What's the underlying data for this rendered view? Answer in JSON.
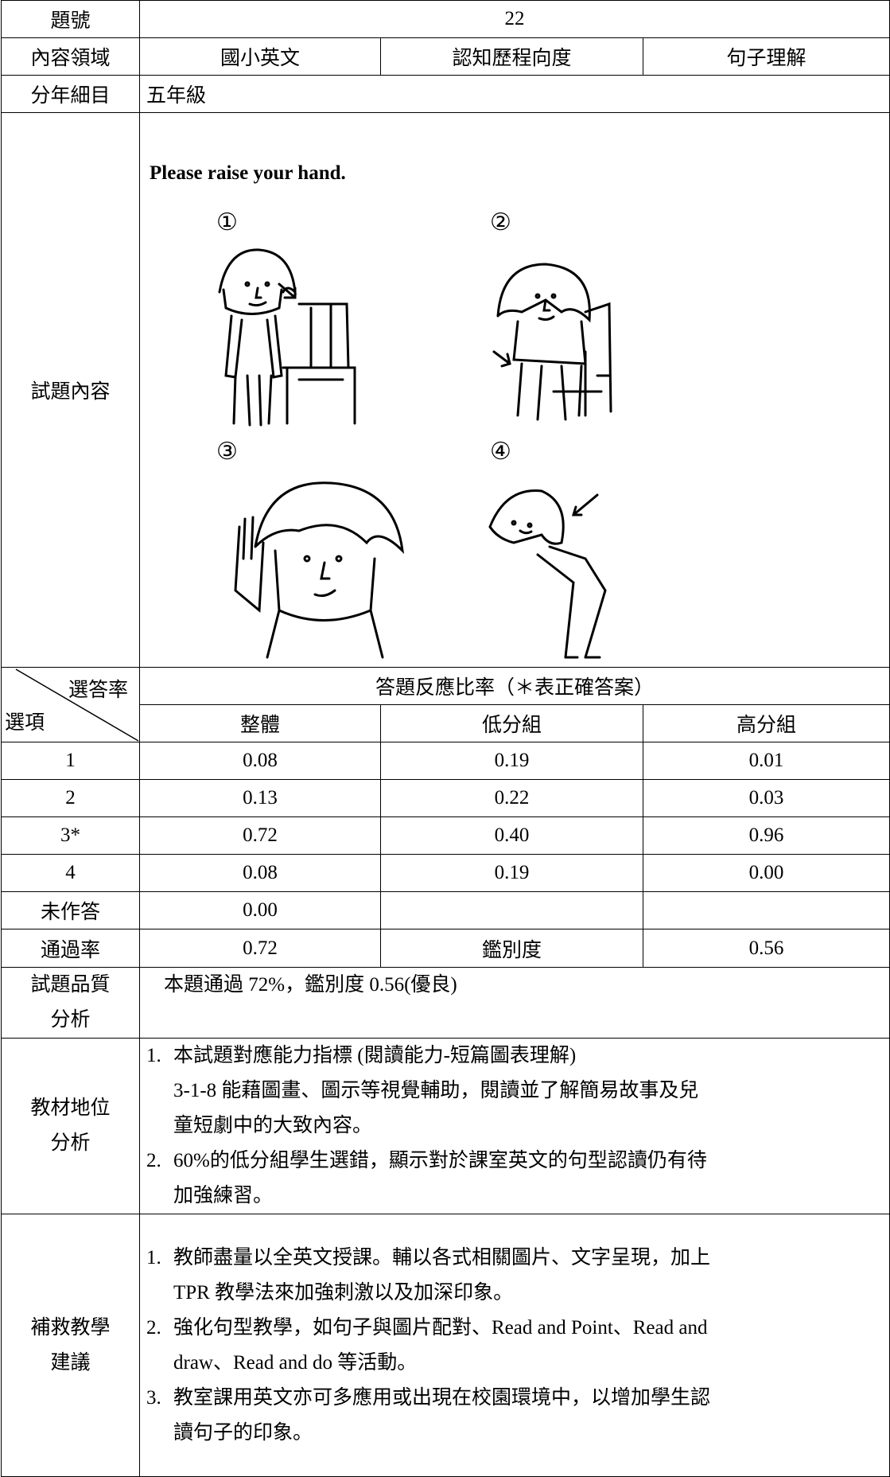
{
  "item": {
    "label": "題號",
    "value": "22"
  },
  "domain": {
    "label": "內容領域",
    "cells": [
      "國小英文",
      "認知歷程向度",
      "句子理解"
    ]
  },
  "grade": {
    "label": "分年細目",
    "value": "五年級"
  },
  "question": {
    "label": "試題內容",
    "prompt": "Please raise your hand.",
    "options": [
      "①",
      "②",
      "③",
      "④"
    ]
  },
  "responses": {
    "corner_top": "選答率",
    "corner_bottom": "選項",
    "caption": "答題反應比率（＊表正確答案）",
    "columns": [
      "整體",
      "低分組",
      "高分組"
    ],
    "rows": [
      [
        "1",
        "0.08",
        "0.19",
        "0.01"
      ],
      [
        "2",
        "0.13",
        "0.22",
        "0.03"
      ],
      [
        "3*",
        "0.72",
        "0.40",
        "0.96"
      ],
      [
        "4",
        "0.08",
        "0.19",
        "0.00"
      ],
      [
        "未作答",
        "0.00"
      ]
    ]
  },
  "pass": {
    "label": "通過率",
    "value": "0.72",
    "disc_label": "鑑別度",
    "disc_value": "0.56"
  },
  "quality": {
    "label": [
      "試題品質",
      "分析"
    ],
    "text": "本題通過 72%，鑑別度 0.56(優良)"
  },
  "position": {
    "label": [
      "教材地位",
      "分析"
    ],
    "items": [
      {
        "num": "1.",
        "lines": [
          "本試題對應能力指標 (閱讀能力-短篇圖表理解)",
          "3-1-8 能藉圖畫、圖示等視覺輔助，閱讀並了解簡易故事及兒",
          "童短劇中的大致內容。"
        ]
      },
      {
        "num": "2.",
        "lines": [
          "60%的低分組學生選錯，顯示對於課室英文的句型認讀仍有待",
          "加強練習。"
        ]
      }
    ]
  },
  "remedy": {
    "label": [
      "補救教學",
      "建議"
    ],
    "items": [
      {
        "num": "1.",
        "lines": [
          "教師盡量以全英文授課。輔以各式相關圖片、文字呈現，加上",
          "TPR 教學法來加強刺激以及加深印象。"
        ]
      },
      {
        "num": "2.",
        "lines": [
          "強化句型教學，如句子與圖片配對、Read and Point、Read and",
          "draw、Read and do 等活動。"
        ]
      },
      {
        "num": "3.",
        "lines": [
          "教室課用英文亦可多應用或出現在校園環境中，以增加學生認",
          "讀句子的印象。"
        ]
      }
    ]
  }
}
